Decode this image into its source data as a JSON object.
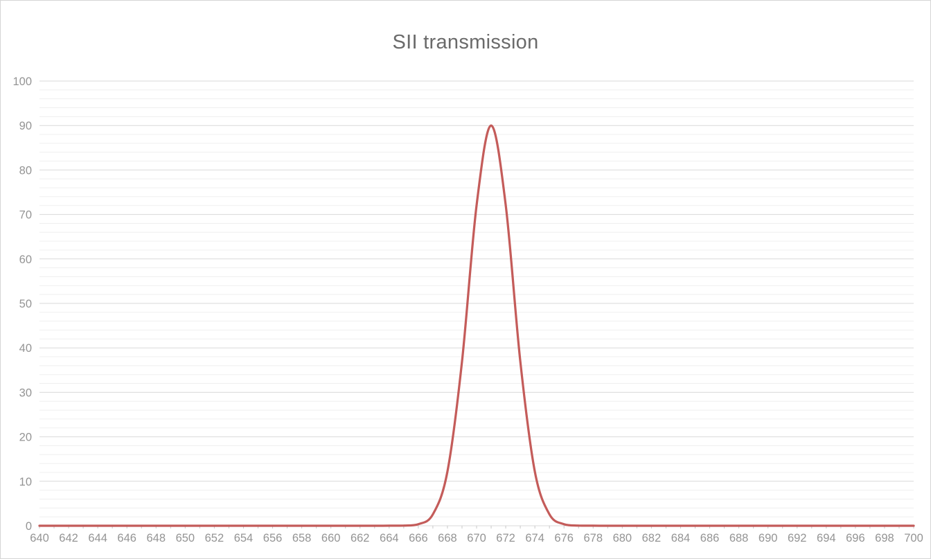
{
  "chart_data": {
    "type": "line",
    "title": "SII transmission",
    "xlabel": "",
    "ylabel": "",
    "xlim": [
      640,
      700
    ],
    "ylim": [
      0,
      100
    ],
    "x_tick_labels": [
      "640",
      "642",
      "644",
      "646",
      "648",
      "650",
      "652",
      "654",
      "656",
      "658",
      "660",
      "662",
      "664",
      "666",
      "668",
      "670",
      "672",
      "674",
      "676",
      "678",
      "680",
      "682",
      "684",
      "686",
      "688",
      "690",
      "692",
      "694",
      "696",
      "698",
      "700"
    ],
    "y_tick_labels": [
      "0",
      "10",
      "20",
      "30",
      "40",
      "50",
      "60",
      "70",
      "80",
      "90",
      "100"
    ],
    "y_major_gridline_step": 10,
    "y_minor_gridline_step": 2,
    "x_minor_tick_step": 1,
    "grid": "horizontal-only",
    "legend": "none",
    "series": [
      {
        "name": "SII transmission",
        "color": "#c0504d",
        "x": [
          640,
          641,
          642,
          643,
          644,
          645,
          646,
          647,
          648,
          649,
          650,
          651,
          652,
          653,
          654,
          655,
          656,
          657,
          658,
          659,
          660,
          661,
          662,
          663,
          664,
          665,
          666,
          667,
          668,
          669,
          670,
          671,
          672,
          673,
          674,
          675,
          676,
          677,
          678,
          679,
          680,
          681,
          682,
          683,
          684,
          685,
          686,
          687,
          688,
          689,
          690,
          691,
          692,
          693,
          694,
          695,
          696,
          697,
          698,
          699,
          700
        ],
        "values": [
          0,
          0,
          0,
          0,
          0,
          0,
          0,
          0,
          0,
          0,
          0,
          0,
          0,
          0,
          0,
          0,
          0,
          0,
          0,
          0,
          0,
          0,
          0,
          0,
          0.01,
          0.03,
          0.35,
          2.57,
          12.18,
          37.0,
          72.06,
          90,
          72.06,
          37.0,
          12.18,
          2.57,
          0.35,
          0.03,
          0.01,
          0,
          0,
          0,
          0,
          0,
          0,
          0,
          0,
          0,
          0,
          0,
          0,
          0,
          0,
          0,
          0,
          0,
          0,
          0,
          0,
          0,
          0
        ]
      }
    ],
    "colors": {
      "title": "#6a6a6a",
      "axis_labels": "#949494",
      "major_gridline": "#d9d9d9",
      "minor_gridline": "#efefef",
      "axis_tick": "#c8c8c8"
    }
  }
}
